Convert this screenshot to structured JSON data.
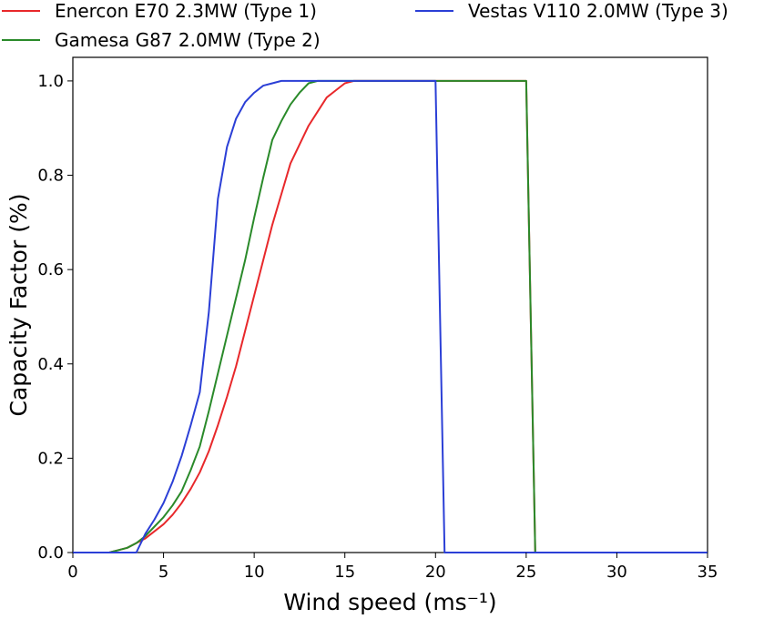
{
  "chart_data": {
    "type": "line",
    "xlabel": "Wind speed (ms⁻¹)",
    "ylabel": "Capacity Factor (%)",
    "xlim": [
      0,
      35
    ],
    "ylim": [
      0,
      1.05
    ],
    "x_ticks": [
      "0",
      "5",
      "10",
      "15",
      "20",
      "25",
      "30",
      "35"
    ],
    "y_ticks": [
      "0.0",
      "0.2",
      "0.4",
      "0.6",
      "0.8",
      "1.0"
    ],
    "grid": false,
    "legend_position": "top",
    "series": [
      {
        "name": "Enercon E70 2.3MW (Type 1)",
        "color": "#e8282b",
        "x": [
          0,
          1,
          2,
          2.5,
          3,
          3.5,
          4,
          4.5,
          5,
          5.5,
          6,
          6.5,
          7,
          7.5,
          8,
          8.5,
          9,
          9.5,
          10,
          10.5,
          11,
          11.5,
          12,
          12.5,
          13,
          13.5,
          14,
          14.5,
          15,
          15.5,
          16,
          17,
          18,
          19,
          20,
          21,
          22,
          23,
          24,
          25,
          25.5,
          26,
          27,
          28,
          29,
          30,
          31,
          32,
          33,
          34,
          35
        ],
        "y": [
          0,
          0,
          0,
          0.005,
          0.01,
          0.02,
          0.03,
          0.045,
          0.06,
          0.08,
          0.105,
          0.135,
          0.17,
          0.215,
          0.27,
          0.33,
          0.395,
          0.47,
          0.545,
          0.62,
          0.695,
          0.76,
          0.825,
          0.865,
          0.905,
          0.935,
          0.965,
          0.98,
          0.995,
          1.0,
          1.0,
          1.0,
          1.0,
          1.0,
          1.0,
          1.0,
          1.0,
          1.0,
          1.0,
          1.0,
          0,
          0,
          0,
          0,
          0,
          0,
          0,
          0,
          0,
          0,
          0
        ]
      },
      {
        "name": "Gamesa G87 2.0MW (Type 2)",
        "color": "#2a8a2a",
        "x": [
          0,
          1,
          2,
          2.5,
          3,
          3.5,
          4,
          4.5,
          5,
          5.5,
          6,
          6.5,
          7,
          7.5,
          8,
          8.5,
          9,
          9.5,
          10,
          10.5,
          11,
          11.5,
          12,
          12.5,
          13,
          13.5,
          14,
          15,
          16,
          17,
          18,
          19,
          20,
          21,
          22,
          23,
          24,
          25,
          25.5,
          26,
          27,
          28,
          29,
          30,
          31,
          32,
          33,
          34,
          35
        ],
        "y": [
          0,
          0,
          0,
          0.005,
          0.01,
          0.02,
          0.035,
          0.055,
          0.075,
          0.1,
          0.13,
          0.175,
          0.225,
          0.3,
          0.38,
          0.46,
          0.54,
          0.62,
          0.71,
          0.795,
          0.875,
          0.915,
          0.95,
          0.975,
          0.995,
          1.0,
          1.0,
          1.0,
          1.0,
          1.0,
          1.0,
          1.0,
          1.0,
          1.0,
          1.0,
          1.0,
          1.0,
          1.0,
          0,
          0,
          0,
          0,
          0,
          0,
          0,
          0,
          0,
          0,
          0
        ]
      },
      {
        "name": "Vestas V110 2.0MW (Type 3)",
        "color": "#2b3fd6",
        "x": [
          0,
          1,
          2,
          3,
          3.5,
          4,
          4.5,
          5,
          5.5,
          6,
          6.5,
          7,
          7.5,
          8,
          8.5,
          9,
          9.5,
          10,
          10.5,
          11,
          11.5,
          12,
          12.5,
          13,
          14,
          15,
          16,
          17,
          18,
          19,
          20,
          20.5,
          21,
          22,
          23,
          24,
          25,
          26,
          27,
          28,
          29,
          30,
          31,
          32,
          33,
          34,
          35
        ],
        "y": [
          0,
          0,
          0,
          0,
          0,
          0.04,
          0.07,
          0.105,
          0.15,
          0.205,
          0.27,
          0.34,
          0.51,
          0.75,
          0.86,
          0.92,
          0.955,
          0.975,
          0.99,
          0.995,
          1.0,
          1.0,
          1.0,
          1.0,
          1.0,
          1.0,
          1.0,
          1.0,
          1.0,
          1.0,
          1.0,
          0,
          0,
          0,
          0,
          0,
          0,
          0,
          0,
          0,
          0,
          0,
          0,
          0,
          0,
          0,
          0
        ]
      }
    ]
  }
}
